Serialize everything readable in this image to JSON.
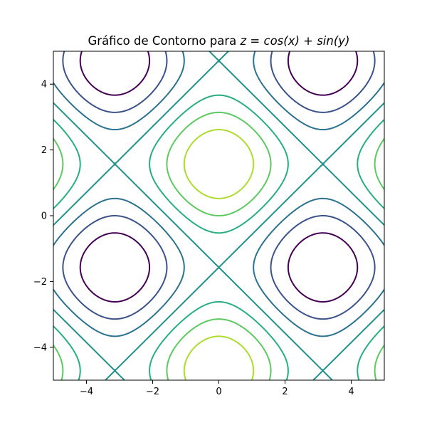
{
  "chart_data": {
    "type": "contour",
    "title": "Gráfico de Contorno para z = cos(x) + sin(y)",
    "title_parts": {
      "prefix": "Gráfico de Contorno para ",
      "math": "z = cos(x) + sin(y)"
    },
    "function": "z = cos(x) + sin(y)",
    "xlabel": "",
    "ylabel": "",
    "xlim": [
      -5,
      5
    ],
    "ylim": [
      -5,
      5
    ],
    "xticks": [
      -4,
      -2,
      0,
      2,
      4
    ],
    "xtick_labels": [
      "−4",
      "−2",
      "0",
      "2",
      "4"
    ],
    "yticks": [
      -4,
      -2,
      0,
      2,
      4
    ],
    "ytick_labels": [
      "−4",
      "−2",
      "0",
      "2",
      "4"
    ],
    "grid": false,
    "legend": false,
    "colormap": "viridis",
    "levels": [
      {
        "value": -1.5,
        "color": "#440154"
      },
      {
        "value": -1.0,
        "color": "#3b528b"
      },
      {
        "value": -0.5,
        "color": "#2c728e"
      },
      {
        "value": 0.0,
        "color": "#21918c"
      },
      {
        "value": 0.5,
        "color": "#28ae80"
      },
      {
        "value": 1.0,
        "color": "#5ec962"
      },
      {
        "value": 1.5,
        "color": "#addc30"
      }
    ]
  }
}
